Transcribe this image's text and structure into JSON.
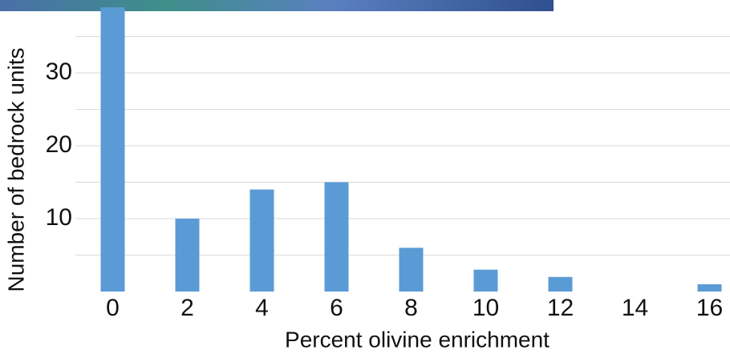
{
  "chart_data": {
    "type": "bar",
    "x_label": "Percent olivine enrichment",
    "y_label": "Number of bedrock units",
    "categories": [
      "0",
      "2",
      "4",
      "6",
      "8",
      "10",
      "12",
      "14",
      "16"
    ],
    "values": [
      39,
      10,
      14,
      15,
      6,
      3,
      2,
      0,
      1
    ],
    "color": "#5b9bd5",
    "ylim": [
      0,
      40
    ],
    "yticks": [
      10,
      20,
      30
    ],
    "minor_yticks": [
      5,
      15,
      25,
      35
    ],
    "grid": true
  }
}
